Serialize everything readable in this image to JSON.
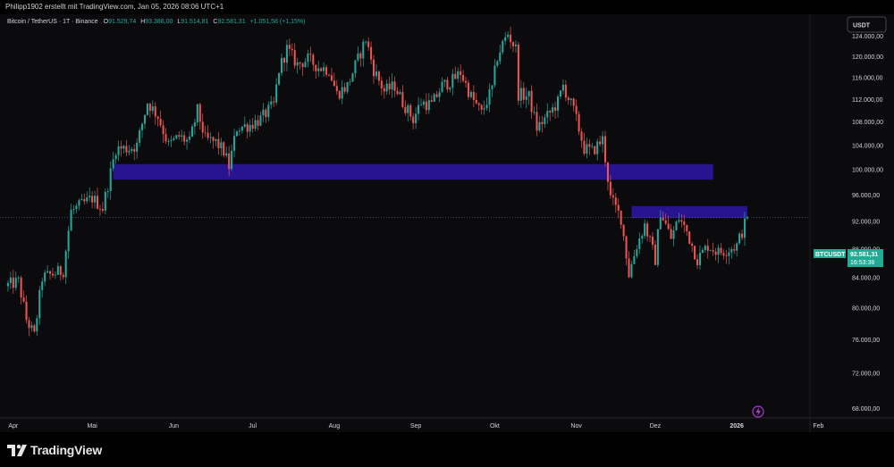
{
  "header": {
    "attribution": "Philipp1902 erstellt mit TradingView.com, Jan 05, 2026 08:06 UTC+1"
  },
  "legend": {
    "symbol": "Bitcoin / TetherUS · 1T · Binance",
    "open_label": "O",
    "open": "91.529,74",
    "high_label": "H",
    "high": "93.388,00",
    "low_label": "L",
    "low": "91.514,81",
    "close_label": "C",
    "close": "92.581,31",
    "change": "+1.051,58 (+1,15%)"
  },
  "currency_button": "USDT",
  "price_badge": {
    "symbol": "BTCUSDT",
    "price": "92.581,31",
    "countdown": "16:53:38"
  },
  "footer": {
    "brand": "TradingView"
  },
  "colors": {
    "background": "#0b0b0d",
    "up": "#26a69a",
    "down": "#ef5350",
    "zone": "#2a1499",
    "badge": "#22ab94"
  },
  "chart_data": {
    "type": "candlestick",
    "title": "",
    "x_labels": [
      "Apr",
      "Mai",
      "Jun",
      "Jul",
      "Aug",
      "Sep",
      "Okt",
      "Nov",
      "Dez",
      "2026",
      "Feb"
    ],
    "y_ticks": [
      "124.000,00",
      "120.000,00",
      "116.000,00",
      "112.000,00",
      "108.000,00",
      "104.000,00",
      "100.000,00",
      "96.000,00",
      "92.000,00",
      "88.000,00",
      "84.000,00",
      "80.000,00",
      "76.000,00",
      "72.000,00",
      "68.000,00"
    ],
    "ylim": [
      67000,
      128500
    ],
    "close_path": [
      [
        "2025-03-30",
        83000
      ],
      [
        "2025-04-03",
        83500
      ],
      [
        "2025-04-06",
        78500
      ],
      [
        "2025-04-09",
        76500
      ],
      [
        "2025-04-12",
        84000
      ],
      [
        "2025-04-16",
        84500
      ],
      [
        "2025-04-20",
        85000
      ],
      [
        "2025-04-23",
        93500
      ],
      [
        "2025-04-27",
        94500
      ],
      [
        "2025-05-01",
        95500
      ],
      [
        "2025-05-05",
        94000
      ],
      [
        "2025-05-08",
        99500
      ],
      [
        "2025-05-10",
        103500
      ],
      [
        "2025-05-15",
        103500
      ],
      [
        "2025-05-18",
        104000
      ],
      [
        "2025-05-22",
        111500
      ],
      [
        "2025-05-26",
        109000
      ],
      [
        "2025-05-30",
        104000
      ],
      [
        "2025-06-03",
        105500
      ],
      [
        "2025-06-07",
        104500
      ],
      [
        "2025-06-10",
        110000
      ],
      [
        "2025-06-13",
        105000
      ],
      [
        "2025-06-17",
        104500
      ],
      [
        "2025-06-20",
        103000
      ],
      [
        "2025-06-22",
        100500
      ],
      [
        "2025-06-25",
        107000
      ],
      [
        "2025-06-30",
        107500
      ],
      [
        "2025-07-04",
        108500
      ],
      [
        "2025-07-09",
        111000
      ],
      [
        "2025-07-11",
        117500
      ],
      [
        "2025-07-14",
        121500
      ],
      [
        "2025-07-18",
        118500
      ],
      [
        "2025-07-22",
        119500
      ],
      [
        "2025-07-26",
        118000
      ],
      [
        "2025-07-30",
        117500
      ],
      [
        "2025-08-02",
        113000
      ],
      [
        "2025-08-06",
        114500
      ],
      [
        "2025-08-10",
        119500
      ],
      [
        "2025-08-13",
        123500
      ],
      [
        "2025-08-16",
        117500
      ],
      [
        "2025-08-20",
        113500
      ],
      [
        "2025-08-24",
        114500
      ],
      [
        "2025-08-27",
        111500
      ],
      [
        "2025-08-31",
        108500
      ],
      [
        "2025-09-03",
        111500
      ],
      [
        "2025-09-07",
        111000
      ],
      [
        "2025-09-11",
        114500
      ],
      [
        "2025-09-15",
        115500
      ],
      [
        "2025-09-18",
        117000
      ],
      [
        "2025-09-22",
        112500
      ],
      [
        "2025-09-26",
        109500
      ],
      [
        "2025-09-30",
        114000
      ],
      [
        "2025-10-02",
        120000
      ],
      [
        "2025-10-04",
        122500
      ],
      [
        "2025-10-06",
        124500
      ],
      [
        "2025-10-09",
        121500
      ],
      [
        "2025-10-10",
        113000
      ],
      [
        "2025-10-14",
        112500
      ],
      [
        "2025-10-17",
        107000
      ],
      [
        "2025-10-21",
        109000
      ],
      [
        "2025-10-25",
        111500
      ],
      [
        "2025-10-27",
        114500
      ],
      [
        "2025-10-31",
        110000
      ],
      [
        "2025-11-04",
        103500
      ],
      [
        "2025-11-07",
        103000
      ],
      [
        "2025-11-11",
        105000
      ],
      [
        "2025-11-14",
        95500
      ],
      [
        "2025-11-18",
        92500
      ],
      [
        "2025-11-21",
        84500
      ],
      [
        "2025-11-24",
        88500
      ],
      [
        "2025-11-27",
        91500
      ],
      [
        "2025-12-01",
        86500
      ],
      [
        "2025-12-03",
        93500
      ],
      [
        "2025-12-07",
        89500
      ],
      [
        "2025-12-10",
        92500
      ],
      [
        "2025-12-13",
        90500
      ],
      [
        "2025-12-17",
        86500
      ],
      [
        "2025-12-21",
        88500
      ],
      [
        "2025-12-25",
        87500
      ],
      [
        "2025-12-29",
        88000
      ],
      [
        "2026-01-01",
        88500
      ],
      [
        "2026-01-03",
        90500
      ],
      [
        "2026-01-05",
        92581
      ]
    ],
    "last_price": 92581.31,
    "zones": [
      {
        "start": "2025-05-09",
        "end": "2025-12-23",
        "top": 100900,
        "bottom": 98400
      },
      {
        "start": "2025-11-22",
        "end": "2026-01-05",
        "top": 94300,
        "bottom": 92500
      }
    ],
    "grid": false,
    "log_scale": true
  }
}
